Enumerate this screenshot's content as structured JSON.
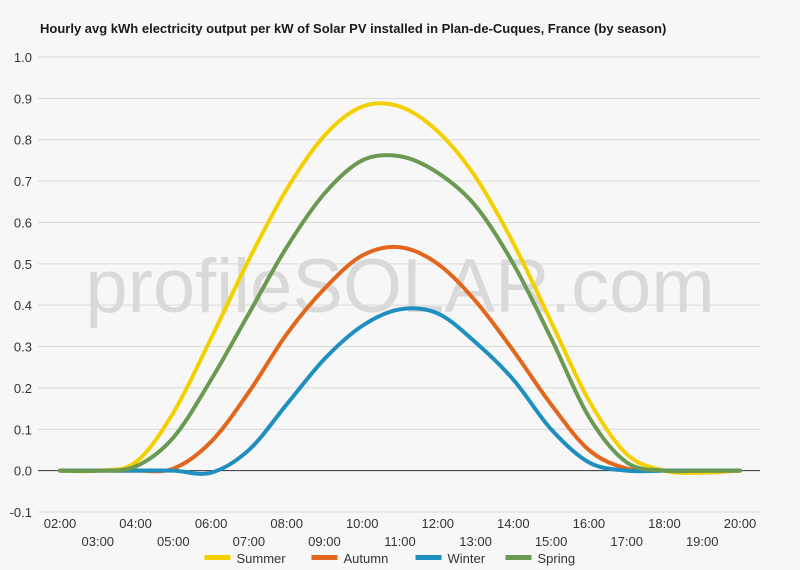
{
  "chart_data": {
    "type": "line",
    "title": "Hourly avg kWh electricity output per kW of Solar PV installed in Plan-de-Cuques, France (by season)",
    "xlabel": "",
    "ylabel": "",
    "watermark": "profileSOLAR.com",
    "ylim": [
      -0.1,
      1.0
    ],
    "yticks": [
      "-0.1",
      "0.0",
      "0.1",
      "0.2",
      "0.3",
      "0.4",
      "0.5",
      "0.6",
      "0.7",
      "0.8",
      "0.9",
      "1.0"
    ],
    "x": [
      "02:00",
      "03:00",
      "04:00",
      "05:00",
      "06:00",
      "07:00",
      "08:00",
      "09:00",
      "10:00",
      "11:00",
      "12:00",
      "13:00",
      "14:00",
      "15:00",
      "16:00",
      "17:00",
      "18:00",
      "19:00",
      "20:00"
    ],
    "grid": true,
    "legend_position": "bottom",
    "series": [
      {
        "name": "Summer",
        "color": "#f5d000",
        "values": [
          0.0,
          0.0,
          0.02,
          0.14,
          0.32,
          0.51,
          0.68,
          0.81,
          0.88,
          0.88,
          0.82,
          0.71,
          0.55,
          0.36,
          0.17,
          0.04,
          0.0,
          -0.005,
          0.0
        ]
      },
      {
        "name": "Autumn",
        "color": "#e2661c",
        "values": [
          0.0,
          0.0,
          0.0,
          0.005,
          0.07,
          0.19,
          0.33,
          0.44,
          0.52,
          0.54,
          0.5,
          0.41,
          0.29,
          0.16,
          0.05,
          0.005,
          0.0,
          0.0,
          0.0
        ]
      },
      {
        "name": "Winter",
        "color": "#1f8fc0",
        "values": [
          0.0,
          0.0,
          0.0,
          0.0,
          -0.005,
          0.05,
          0.16,
          0.27,
          0.35,
          0.39,
          0.38,
          0.31,
          0.22,
          0.1,
          0.02,
          0.0,
          0.0,
          0.0,
          0.0
        ]
      },
      {
        "name": "Spring",
        "color": "#6a9a52",
        "values": [
          0.0,
          0.0,
          0.01,
          0.08,
          0.22,
          0.38,
          0.54,
          0.67,
          0.75,
          0.76,
          0.72,
          0.64,
          0.5,
          0.32,
          0.13,
          0.02,
          0.0,
          0.0,
          0.0
        ]
      }
    ]
  }
}
